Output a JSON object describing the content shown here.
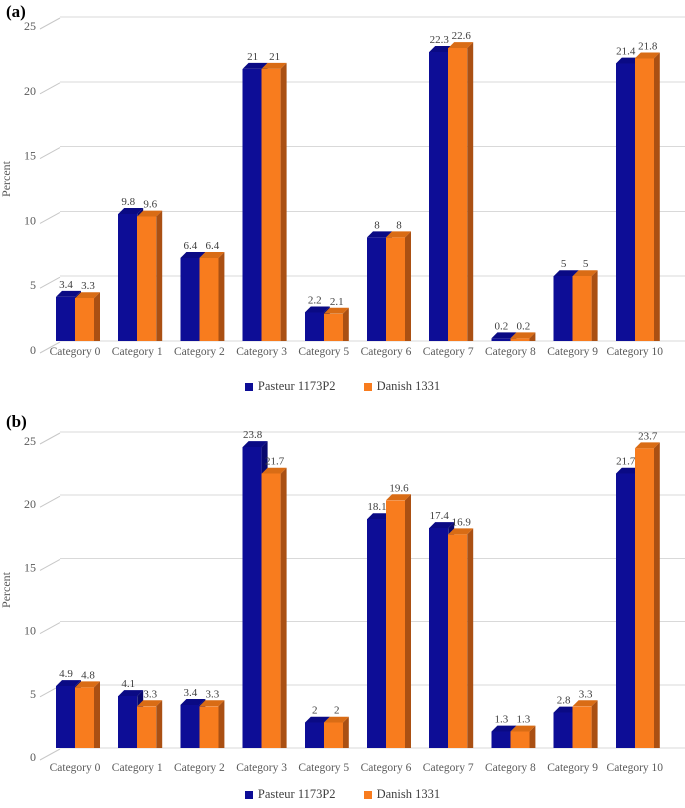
{
  "colors": {
    "gridline": "#d9d9d9",
    "axis_tick_diagonal": "#c8c8c8",
    "axis_text": "#595959",
    "value_label_text": "#3f3f3f",
    "legend_text": "#3f3f3f"
  },
  "chart_data": [
    {
      "type": "bar",
      "panel": "(a)",
      "title": "",
      "xlabel": "",
      "ylabel": "Percent",
      "ylim": [
        0,
        25
      ],
      "yticks": [
        0,
        5,
        10,
        15,
        20,
        25
      ],
      "grid": true,
      "style": "3d-bar",
      "legend_position": "bottom",
      "categories": [
        "Category 0",
        "Category 1",
        "Category 2",
        "Category 3",
        "Category 5",
        "Category 6",
        "Category 7",
        "Category 8",
        "Category 9",
        "Category 10"
      ],
      "series": [
        {
          "name": "Pasteur 1173P2",
          "color": "#0d0d96",
          "top_color": "#0a0a84",
          "side_color": "#08086e",
          "values": [
            3.4,
            9.8,
            6.4,
            21,
            2.2,
            8,
            22.3,
            0.2,
            5,
            21.4
          ]
        },
        {
          "name": "Danish 1331",
          "color": "#f87c1e",
          "top_color": "#d96c15",
          "side_color": "#aa5013",
          "values": [
            3.3,
            9.6,
            6.4,
            21,
            2.1,
            8,
            22.6,
            0.2,
            5,
            21.8
          ]
        }
      ]
    },
    {
      "type": "bar",
      "panel": "(b)",
      "title": "",
      "xlabel": "",
      "ylabel": "Percent",
      "ylim": [
        0,
        25
      ],
      "yticks": [
        0,
        5,
        10,
        15,
        20,
        25
      ],
      "grid": true,
      "style": "3d-bar",
      "legend_position": "bottom",
      "categories": [
        "Category 0",
        "Category 1",
        "Category 2",
        "Category 3",
        "Category 5",
        "Category 6",
        "Category 7",
        "Category 8",
        "Category 9",
        "Category 10"
      ],
      "series": [
        {
          "name": "Pasteur 1173P2",
          "color": "#0d0d96",
          "top_color": "#0a0a84",
          "side_color": "#08086e",
          "values": [
            4.9,
            4.1,
            3.4,
            23.8,
            2,
            18.1,
            17.4,
            1.3,
            2.8,
            21.7
          ]
        },
        {
          "name": "Danish 1331",
          "color": "#f87c1e",
          "top_color": "#d96c15",
          "side_color": "#aa5013",
          "values": [
            4.8,
            3.3,
            3.3,
            21.7,
            2,
            19.6,
            16.9,
            1.3,
            3.3,
            23.7
          ]
        }
      ]
    }
  ]
}
